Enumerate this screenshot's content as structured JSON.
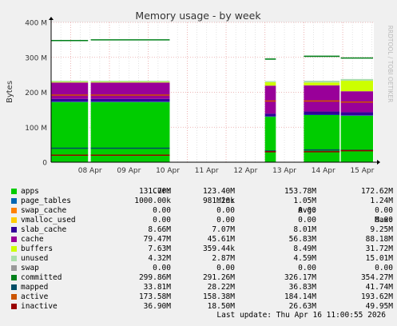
{
  "chart_data": {
    "type": "area",
    "title": "Memory usage - by week",
    "ylabel": "Bytes",
    "watermark": "RRDTOOL / TOBI OETIKER",
    "ylim": [
      0,
      400
    ],
    "y_unit": "M",
    "y_ticks": [
      0,
      100,
      200,
      300,
      400
    ],
    "y_tick_labels": [
      "0",
      "100 M",
      "200 M",
      "300 M",
      "400 M"
    ],
    "x_ticks": [
      "08 Apr",
      "09 Apr",
      "10 Apr",
      "11 Apr",
      "12 Apr",
      "13 Apr",
      "14 Apr",
      "15 Apr"
    ],
    "x_range_days": [
      7.5,
      15.8
    ],
    "grid": true,
    "data_segments": [
      {
        "start": 7.5,
        "end": 8.45,
        "apps": 172,
        "page_tables": 1,
        "slab_cache": 8,
        "cache": 47,
        "buffers": 2,
        "unused": 3,
        "committed": 348,
        "mapped": 40,
        "active": 192,
        "inactive": 20
      },
      {
        "start": 8.52,
        "end": 10.55,
        "apps": 172,
        "page_tables": 1,
        "slab_cache": 8,
        "cache": 47,
        "buffers": 2,
        "unused": 3,
        "committed": 350,
        "mapped": 40,
        "active": 192,
        "inactive": 20
      },
      {
        "start": 13.0,
        "end": 13.28,
        "apps": 130,
        "page_tables": 1,
        "slab_cache": 8,
        "cache": 80,
        "buffers": 10,
        "unused": 3,
        "committed": 295,
        "mapped": 32,
        "active": 175,
        "inactive": 30
      },
      {
        "start": 14.0,
        "end": 14.92,
        "apps": 135,
        "page_tables": 1,
        "slab_cache": 9,
        "cache": 75,
        "buffers": 8,
        "unused": 5,
        "committed": 303,
        "mapped": 35,
        "active": 175,
        "inactive": 30
      },
      {
        "start": 14.95,
        "end": 15.78,
        "apps": 133,
        "page_tables": 1,
        "slab_cache": 9,
        "cache": 60,
        "buffers": 30,
        "unused": 5,
        "committed": 298,
        "mapped": 34,
        "active": 172,
        "inactive": 33
      }
    ],
    "series": [
      {
        "name": "apps",
        "color": "#00cc00",
        "kind": "area"
      },
      {
        "name": "page_tables",
        "color": "#0066b3",
        "kind": "area"
      },
      {
        "name": "swap_cache",
        "color": "#ff8000",
        "kind": "area"
      },
      {
        "name": "vmalloc_used",
        "color": "#ffcc00",
        "kind": "area"
      },
      {
        "name": "slab_cache",
        "color": "#330099",
        "kind": "area"
      },
      {
        "name": "cache",
        "color": "#990099",
        "kind": "area"
      },
      {
        "name": "buffers",
        "color": "#ccff00",
        "kind": "area"
      },
      {
        "name": "unused",
        "color": "#aaddaa",
        "kind": "area"
      },
      {
        "name": "swap",
        "color": "#999999",
        "kind": "area"
      },
      {
        "name": "committed",
        "color": "#00801a",
        "kind": "line"
      },
      {
        "name": "mapped",
        "color": "#004d66",
        "kind": "line"
      },
      {
        "name": "active",
        "color": "#cc5500",
        "kind": "line"
      },
      {
        "name": "inactive",
        "color": "#990000",
        "kind": "line"
      }
    ]
  },
  "legend": {
    "headers": {
      "cur": "Cur:",
      "min": "Min:",
      "avg": "Avg:",
      "max": "Max:"
    },
    "rows": [
      {
        "name": "apps",
        "color": "#00cc00",
        "cur": "131.70M",
        "min": "123.40M",
        "avg": "153.78M",
        "max": "172.62M"
      },
      {
        "name": "page_tables",
        "color": "#0066b3",
        "cur": "1000.00k",
        "min": "981.20k",
        "avg": "1.05M",
        "max": "1.24M"
      },
      {
        "name": "swap_cache",
        "color": "#ff8000",
        "cur": "0.00",
        "min": "0.00",
        "avg": "0.00",
        "max": "0.00"
      },
      {
        "name": "vmalloc_used",
        "color": "#ffcc00",
        "cur": "0.00",
        "min": "0.00",
        "avg": "0.00",
        "max": "0.00"
      },
      {
        "name": "slab_cache",
        "color": "#330099",
        "cur": "8.66M",
        "min": "7.07M",
        "avg": "8.01M",
        "max": "9.25M"
      },
      {
        "name": "cache",
        "color": "#990099",
        "cur": "79.47M",
        "min": "45.61M",
        "avg": "56.83M",
        "max": "88.18M"
      },
      {
        "name": "buffers",
        "color": "#ccff00",
        "cur": "7.63M",
        "min": "359.44k",
        "avg": "8.49M",
        "max": "31.72M"
      },
      {
        "name": "unused",
        "color": "#aaddaa",
        "cur": "4.32M",
        "min": "2.87M",
        "avg": "4.59M",
        "max": "15.01M"
      },
      {
        "name": "swap",
        "color": "#999999",
        "cur": "0.00",
        "min": "0.00",
        "avg": "0.00",
        "max": "0.00"
      },
      {
        "name": "committed",
        "color": "#00801a",
        "cur": "299.86M",
        "min": "291.26M",
        "avg": "326.17M",
        "max": "354.27M"
      },
      {
        "name": "mapped",
        "color": "#004d66",
        "cur": "33.81M",
        "min": "28.22M",
        "avg": "36.83M",
        "max": "41.74M"
      },
      {
        "name": "active",
        "color": "#cc5500",
        "cur": "173.58M",
        "min": "158.38M",
        "avg": "184.14M",
        "max": "193.62M"
      },
      {
        "name": "inactive",
        "color": "#990000",
        "cur": "36.90M",
        "min": "18.50M",
        "avg": "26.63M",
        "max": "49.95M"
      }
    ]
  },
  "footer": "Last update: Thu Apr 16 11:00:55 2026"
}
